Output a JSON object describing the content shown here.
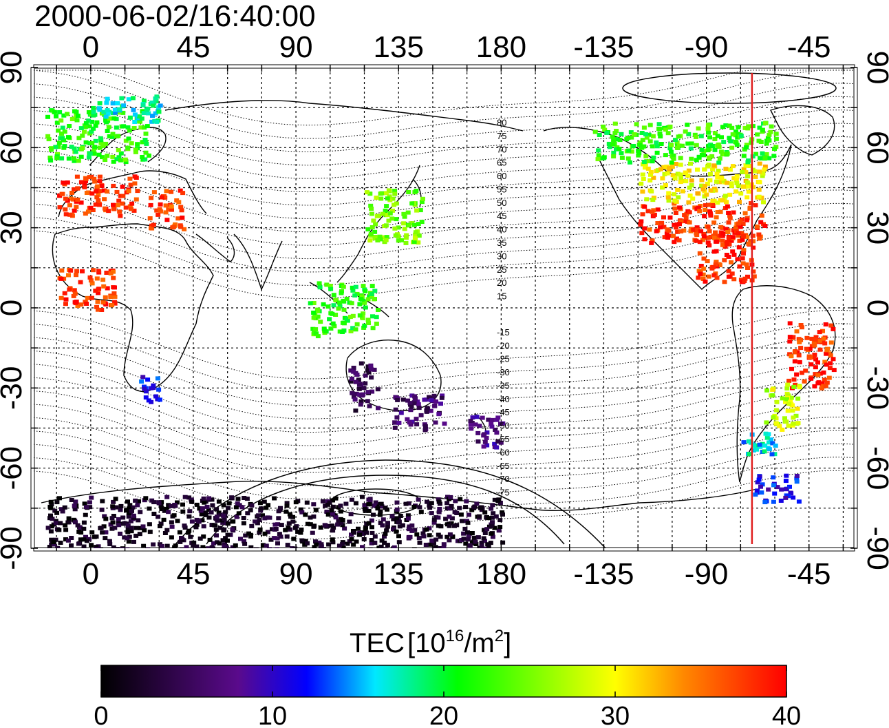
{
  "timestamp": "2000-06-02/16:40:00",
  "lon_labels": [
    "0",
    "45",
    "90",
    "135",
    "180",
    "-135",
    "-90",
    "-45"
  ],
  "lat_labels_left": [
    "90",
    "60",
    "30",
    "0",
    "-30",
    "-60",
    "-90"
  ],
  "lat_labels_right": [
    "90",
    "60",
    "30",
    "0",
    "-30",
    "-60",
    "-90"
  ],
  "magnetic_lat_labels_north": [
    "80",
    "75",
    "70",
    "65",
    "60",
    "55",
    "50",
    "45",
    "40",
    "35",
    "30",
    "25",
    "20",
    "15"
  ],
  "magnetic_lat_labels_south": [
    "-15",
    "-20",
    "-25",
    "-30",
    "-35",
    "-40",
    "-45",
    "-50",
    "-55",
    "-60",
    "-65",
    "-70",
    "-75"
  ],
  "colorbar": {
    "title": "TEC",
    "unit_base": "[10",
    "unit_exp": "16",
    "unit_mid": "/m",
    "unit_exp2": "2",
    "unit_end": "]",
    "ticks": [
      "0",
      "10",
      "20",
      "30",
      "40"
    ],
    "min": 0,
    "max": 40
  },
  "noon_meridian_lon": -70,
  "colors": {
    "marker_line": "#e02020",
    "scale": [
      "#000000",
      "#5a0a8c",
      "#0000ff",
      "#00e8ff",
      "#00ff00",
      "#ffff00",
      "#ff8800",
      "#ff0000"
    ]
  },
  "chart_data": {
    "type": "map",
    "title": "2000-06-02/16:40:00",
    "xlabel": "",
    "ylabel": "",
    "xlim": [
      -25,
      335
    ],
    "ylim": [
      -90,
      90
    ],
    "grid": true,
    "colorbar_range": [
      0,
      40
    ],
    "colorbar_label": "TEC [10^16/m^2]",
    "patches": [
      {
        "region": "europe-north",
        "lon": [
          -20,
          25
        ],
        "lat": [
          55,
          75
        ],
        "tec": 22
      },
      {
        "region": "scandinavia-cyan",
        "lon": [
          0,
          30
        ],
        "lat": [
          70,
          80
        ],
        "tec": 17
      },
      {
        "region": "europe-south",
        "lon": [
          -15,
          20
        ],
        "lat": [
          35,
          50
        ],
        "tec": 38
      },
      {
        "region": "mediterranean",
        "lon": [
          25,
          40
        ],
        "lat": [
          30,
          45
        ],
        "tec": 37
      },
      {
        "region": "east-asia",
        "lon": [
          120,
          145
        ],
        "lat": [
          25,
          45
        ],
        "tec": 25
      },
      {
        "region": "north-america-south",
        "lon": [
          -120,
          -65
        ],
        "lat": [
          25,
          40
        ],
        "tec": 38
      },
      {
        "region": "north-america-mid",
        "lon": [
          -120,
          -65
        ],
        "lat": [
          40,
          55
        ],
        "tec": 30
      },
      {
        "region": "canada",
        "lon": [
          -140,
          -60
        ],
        "lat": [
          55,
          70
        ],
        "tec": 22
      },
      {
        "region": "caribbean",
        "lon": [
          -95,
          -70
        ],
        "lat": [
          10,
          30
        ],
        "tec": 38
      },
      {
        "region": "south-america-east",
        "lon": [
          -55,
          -35
        ],
        "lat": [
          -30,
          -5
        ],
        "tec": 38
      },
      {
        "region": "south-america-south",
        "lon": [
          -65,
          -50
        ],
        "lat": [
          -45,
          -28
        ],
        "tec": 28
      },
      {
        "region": "patagonia",
        "lon": [
          -75,
          -60
        ],
        "lat": [
          -55,
          -45
        ],
        "tec": 16
      },
      {
        "region": "antarctic-peninsula",
        "lon": [
          -70,
          -50
        ],
        "lat": [
          -72,
          -62
        ],
        "tec": 11
      },
      {
        "region": "australia-west",
        "lon": [
          112,
          125
        ],
        "lat": [
          -38,
          -20
        ],
        "tec": 5
      },
      {
        "region": "australia-se",
        "lon": [
          130,
          155
        ],
        "lat": [
          -45,
          -32
        ],
        "tec": 6
      },
      {
        "region": "new-zealand",
        "lon": [
          165,
          180
        ],
        "lat": [
          -52,
          -40
        ],
        "tec": 7
      },
      {
        "region": "antarctica",
        "lon": [
          -20,
          180
        ],
        "lat": [
          -90,
          -70
        ],
        "tec": 2
      },
      {
        "region": "indonesia",
        "lon": [
          95,
          125
        ],
        "lat": [
          -10,
          10
        ],
        "tec": 22
      },
      {
        "region": "south-africa",
        "lon": [
          20,
          30
        ],
        "lat": [
          -35,
          -25
        ],
        "tec": 12
      },
      {
        "region": "west-africa",
        "lon": [
          -15,
          10
        ],
        "lat": [
          0,
          15
        ],
        "tec": 38
      }
    ]
  }
}
